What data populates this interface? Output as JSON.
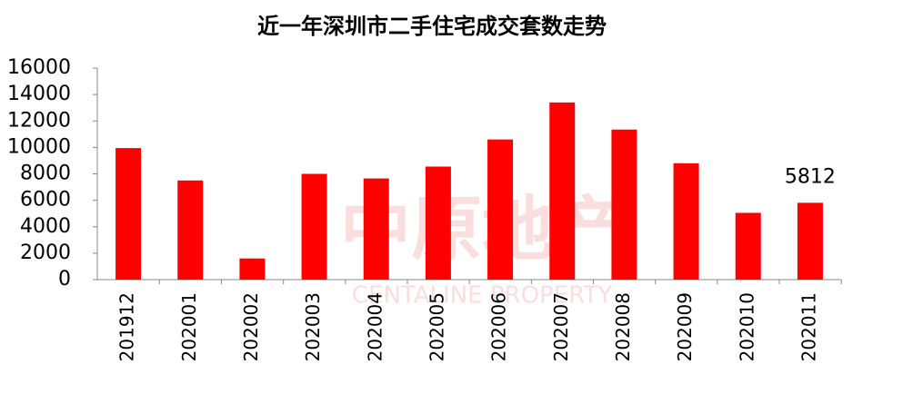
{
  "chart_data": {
    "type": "bar",
    "title": "近一年深圳市二手住宅成交套数走势",
    "categories": [
      "201912",
      "202001",
      "202002",
      "202003",
      "202004",
      "202005",
      "202006",
      "202007",
      "202008",
      "202009",
      "202010",
      "202011"
    ],
    "values": [
      9950,
      7500,
      1600,
      8000,
      7650,
      8550,
      10600,
      13400,
      11350,
      8800,
      5050,
      5812
    ],
    "value_labels": [
      null,
      null,
      null,
      null,
      null,
      null,
      null,
      null,
      null,
      null,
      null,
      "5812"
    ],
    "color": "#ff0000",
    "ylim": [
      0,
      16000
    ],
    "yticks": [
      0,
      2000,
      4000,
      6000,
      8000,
      10000,
      12000,
      14000,
      16000
    ],
    "grid": false,
    "watermark": {
      "cn": "中原地产",
      "en": "CENTALINE PROPERTY"
    }
  }
}
